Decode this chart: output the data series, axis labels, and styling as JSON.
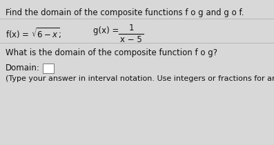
{
  "bg_color": "#d8d8d8",
  "text_color": "#111111",
  "gray_text_color": "#555555",
  "line1": "Find the domain of the composite functions f o g and g o f.",
  "func_f_text": "f(x) = ",
  "func_f_sqrt": "$\\sqrt{6-x}$;",
  "func_g_prefix": "g(x) = ",
  "func_g_num": "1",
  "func_g_den": "x − 5",
  "separator_color": "#aaaaaa",
  "question": "What is the domain of the composite function f o g?",
  "domain_label": "Domain:",
  "note": "(Type your answer in interval notation. Use integers or fractions for any numbers in",
  "font_size_main": 8.5,
  "font_size_note": 8.0,
  "box_edge_color": "#777777",
  "box_face_color": "#ffffff"
}
